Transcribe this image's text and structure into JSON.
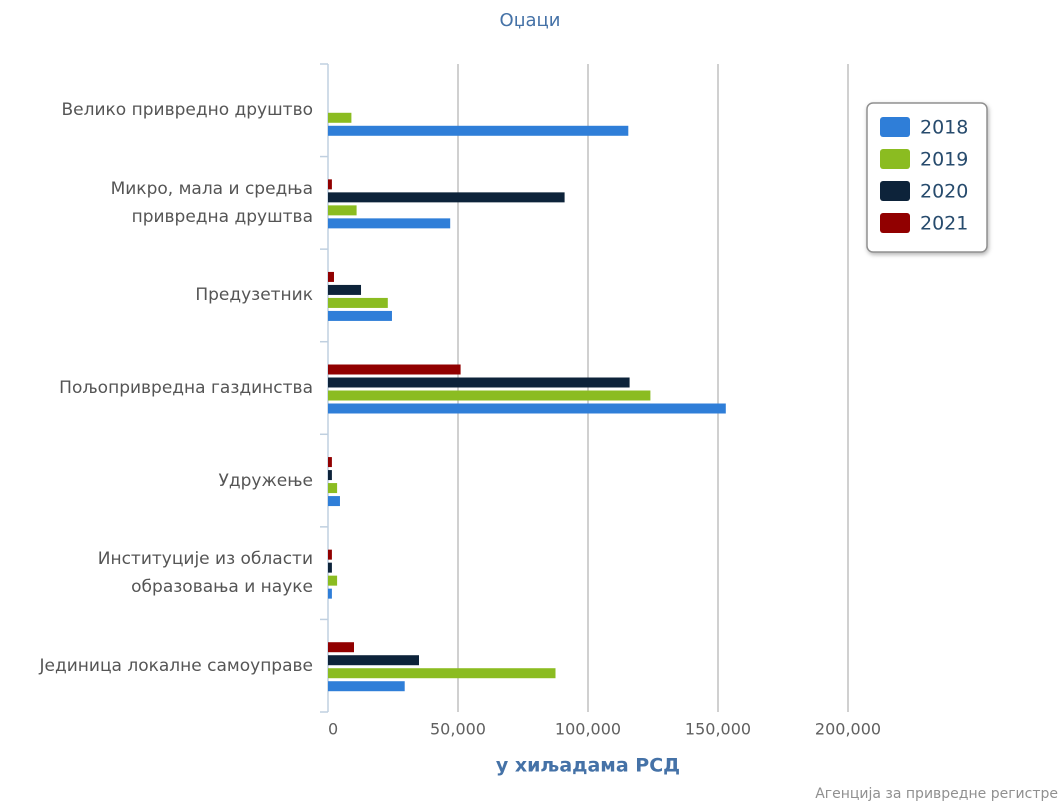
{
  "chart_data": {
    "type": "bar",
    "orientation": "horizontal",
    "title": "Оџаци",
    "categories": [
      "Велико привредно друштво",
      "Микро, мала и средња привредна друштва",
      "Предузетник",
      "Пољопривредна газдинства",
      "Удружење",
      "Институције из области образовања и науке",
      "Јединица локалне самоуправе"
    ],
    "series": [
      {
        "name": "2021",
        "color": "#910000",
        "values": [
          null,
          1500,
          2300,
          51000,
          1500,
          1500,
          10000
        ]
      },
      {
        "name": "2020",
        "color": "#0d233a",
        "values": [
          null,
          91000,
          12700,
          116000,
          1500,
          1500,
          35000
        ]
      },
      {
        "name": "2019",
        "color": "#8bbc21",
        "values": [
          9000,
          11000,
          23000,
          124000,
          3500,
          3500,
          87500
        ]
      },
      {
        "name": "2018",
        "color": "#2f7ed8",
        "values": [
          115500,
          47000,
          24600,
          153000,
          4600,
          1500,
          29500
        ]
      }
    ],
    "legend_order": [
      3,
      2,
      1,
      0
    ],
    "xlim": [
      0,
      200000
    ],
    "xticks": [
      0,
      {
        "value": 50000,
        "label": "50,000"
      },
      {
        "value": 100000,
        "label": "100,000"
      },
      {
        "value": 150000,
        "label": "150,000"
      },
      {
        "value": 200000,
        "label": "200,000"
      }
    ],
    "xlabel": "у хиљадама РСД",
    "credit": "Агенција за привредне регистре",
    "grid": true,
    "legend": "top-right"
  }
}
